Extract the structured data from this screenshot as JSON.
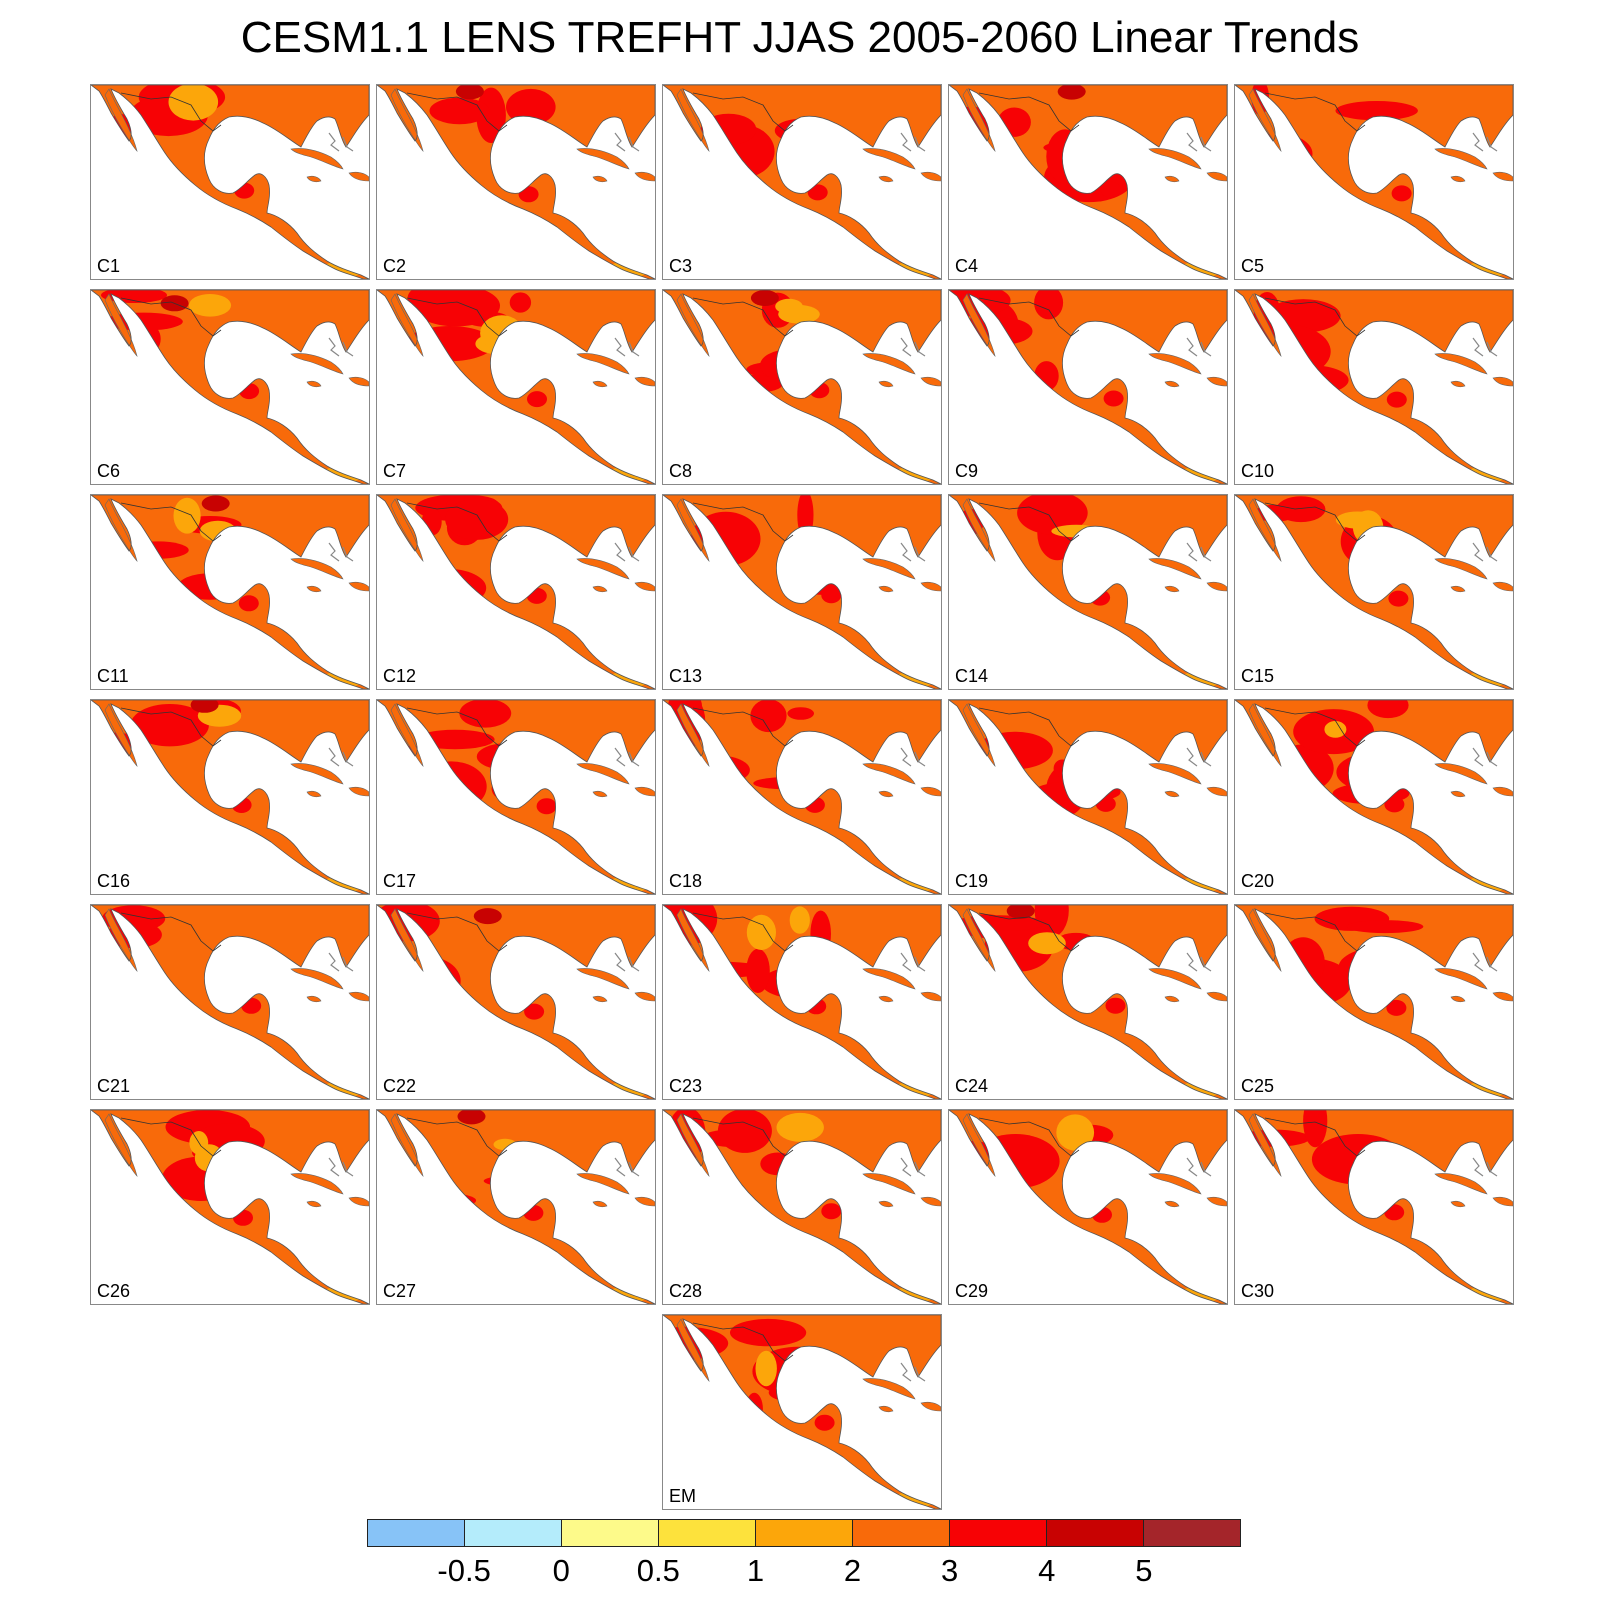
{
  "title": "CESM1.1 LENS TREFHT JJAS 2005-2060 Linear Trends",
  "chart_data": {
    "type": "heatmap",
    "title": "CESM1.1 LENS TREFHT JJAS 2005-2060 Linear Trends",
    "layout": "grid of 31 maps (6 rows of 5 ensemble members plus centered ensemble mean)",
    "panel_labels": [
      "C1",
      "C2",
      "C3",
      "C4",
      "C5",
      "C6",
      "C7",
      "C8",
      "C9",
      "C10",
      "C11",
      "C12",
      "C13",
      "C14",
      "C15",
      "C16",
      "C17",
      "C18",
      "C19",
      "C20",
      "C21",
      "C22",
      "C23",
      "C24",
      "C25",
      "C26",
      "C27",
      "C28",
      "C29",
      "C30",
      "EM"
    ],
    "colorbar": {
      "tick_labels": [
        "-0.5",
        "0",
        "0.5",
        "1",
        "2",
        "3",
        "4",
        "5"
      ],
      "levels": [
        -0.5,
        0,
        0.5,
        1,
        2,
        3,
        4,
        5
      ],
      "colors": [
        "#87c3f7",
        "#b4ecfb",
        "#fdfa8a",
        "#fde23c",
        "#fca60a",
        "#f86a0a",
        "#f70205",
        "#c80202",
        "#a4252a"
      ]
    },
    "dominant_trend_range": [
      2,
      3
    ],
    "region": "Mexico and Central America"
  }
}
